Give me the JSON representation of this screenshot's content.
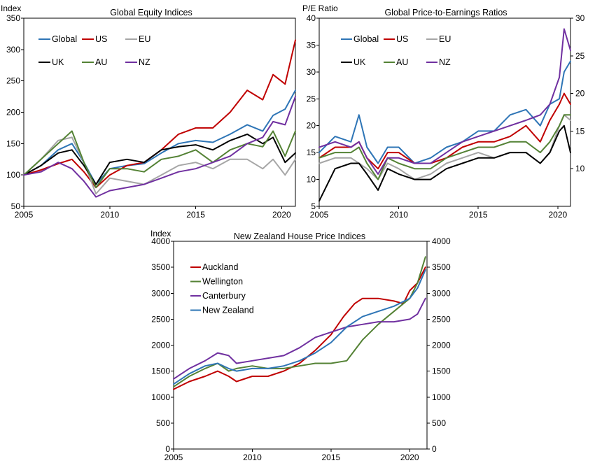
{
  "chart_data": [
    {
      "type": "line",
      "title": "Global Equity Indices",
      "ylabel": "Index",
      "x_ticks": [
        "2005",
        "2010",
        "2015",
        "2020"
      ],
      "y_ticks": [
        "50",
        "100",
        "150",
        "200",
        "250",
        "300",
        "350"
      ],
      "xlim": [
        2005,
        2020.8
      ],
      "ylim": [
        50,
        350
      ],
      "grid": false,
      "legend_position": "top-left",
      "series": [
        {
          "name": "Global",
          "color": "#2E75B6",
          "x": [
            2005,
            2006,
            2007,
            2007.8,
            2008.5,
            2009.2,
            2010,
            2011,
            2012,
            2013,
            2014,
            2015,
            2016,
            2017,
            2018,
            2018.9,
            2019.5,
            2020.2,
            2020.8
          ],
          "values": [
            100,
            115,
            140,
            150,
            120,
            85,
            110,
            115,
            118,
            135,
            150,
            155,
            152,
            165,
            180,
            170,
            195,
            205,
            235
          ]
        },
        {
          "name": "US",
          "color": "#C00000",
          "x": [
            2005,
            2006,
            2007,
            2007.8,
            2008.5,
            2009.2,
            2010,
            2011,
            2012,
            2013,
            2014,
            2015,
            2016,
            2017,
            2018,
            2018.9,
            2019.5,
            2020.2,
            2020.8
          ],
          "values": [
            100,
            108,
            118,
            125,
            105,
            80,
            100,
            115,
            120,
            140,
            165,
            175,
            175,
            200,
            235,
            220,
            260,
            245,
            315
          ]
        },
        {
          "name": "EU",
          "color": "#A6A6A6",
          "x": [
            2005,
            2006,
            2007,
            2007.8,
            2008.5,
            2009.2,
            2010,
            2011,
            2012,
            2013,
            2014,
            2015,
            2016,
            2017,
            2018,
            2018.9,
            2019.5,
            2020.2,
            2020.8
          ],
          "values": [
            100,
            125,
            155,
            160,
            120,
            70,
            95,
            90,
            85,
            100,
            115,
            120,
            110,
            125,
            125,
            110,
            125,
            100,
            125
          ]
        },
        {
          "name": "UK",
          "color": "#000000",
          "x": [
            2005,
            2006,
            2007,
            2007.8,
            2008.5,
            2009.2,
            2010,
            2011,
            2012,
            2013,
            2014,
            2015,
            2016,
            2017,
            2018,
            2018.9,
            2019.5,
            2020.2,
            2020.8
          ],
          "values": [
            100,
            115,
            135,
            140,
            115,
            85,
            120,
            125,
            120,
            140,
            145,
            148,
            140,
            155,
            165,
            150,
            160,
            120,
            135
          ]
        },
        {
          "name": "AU",
          "color": "#548235",
          "x": [
            2005,
            2006,
            2007,
            2007.8,
            2008.5,
            2009.2,
            2010,
            2011,
            2012,
            2013,
            2014,
            2015,
            2016,
            2017,
            2018,
            2018.9,
            2019.5,
            2020.2,
            2020.8
          ],
          "values": [
            100,
            125,
            150,
            170,
            120,
            80,
            110,
            110,
            105,
            125,
            130,
            140,
            120,
            140,
            150,
            145,
            170,
            130,
            170
          ]
        },
        {
          "name": "NZ",
          "color": "#7030A0",
          "x": [
            2005,
            2006,
            2007,
            2007.8,
            2008.5,
            2009.2,
            2010,
            2011,
            2012,
            2013,
            2014,
            2015,
            2016,
            2017,
            2018,
            2018.9,
            2019.5,
            2020.2,
            2020.8
          ],
          "values": [
            100,
            105,
            120,
            110,
            90,
            65,
            75,
            80,
            85,
            95,
            105,
            110,
            120,
            130,
            150,
            160,
            185,
            180,
            225
          ]
        }
      ]
    },
    {
      "type": "line",
      "title": "Global Price-to-Earnings Ratios",
      "ylabel": "P/E Ratio",
      "x_ticks": [
        "2005",
        "2010",
        "2015",
        "2020"
      ],
      "y_ticks": [
        "5",
        "10",
        "15",
        "20",
        "25",
        "30",
        "35",
        "40"
      ],
      "y2_ticks": [
        "10",
        "15",
        "20",
        "25",
        "30"
      ],
      "xlim": [
        2005,
        2020.8
      ],
      "ylim": [
        5,
        40
      ],
      "y2lim": [
        5,
        30
      ],
      "grid": false,
      "legend_position": "top-left",
      "series": [
        {
          "name": "Global",
          "color": "#2E75B6",
          "x": [
            2005,
            2006,
            2007,
            2007.5,
            2008,
            2008.7,
            2009.3,
            2010,
            2011,
            2012,
            2013,
            2014,
            2015,
            2016,
            2017,
            2018,
            2018.9,
            2019.5,
            2020.1,
            2020.4,
            2020.8
          ],
          "values": [
            15,
            18,
            17,
            22,
            16,
            13,
            16,
            16,
            13,
            14,
            16,
            17,
            19,
            19,
            22,
            23,
            20,
            24,
            25,
            30,
            32
          ]
        },
        {
          "name": "US",
          "color": "#C00000",
          "x": [
            2005,
            2006,
            2007,
            2007.5,
            2008,
            2008.7,
            2009.3,
            2010,
            2011,
            2012,
            2013,
            2014,
            2015,
            2016,
            2017,
            2018,
            2018.9,
            2019.5,
            2020.1,
            2020.4,
            2020.8
          ],
          "values": [
            14,
            16,
            16,
            17,
            14,
            12,
            15,
            15,
            13,
            13,
            14,
            16,
            17,
            17,
            18,
            20,
            17,
            21,
            24,
            26,
            24
          ]
        },
        {
          "name": "EU",
          "color": "#A6A6A6",
          "x": [
            2005,
            2006,
            2007,
            2007.5,
            2008,
            2008.7,
            2009.3,
            2010,
            2011,
            2012,
            2013,
            2014,
            2015,
            2016,
            2017,
            2018,
            2018.9,
            2019.5,
            2020.1,
            2020.4,
            2020.8
          ],
          "values": [
            13,
            14,
            14,
            13,
            12,
            10,
            13,
            12,
            10,
            11,
            13,
            14,
            15,
            14,
            15,
            15,
            13,
            15,
            20,
            22,
            21
          ]
        },
        {
          "name": "UK",
          "color": "#000000",
          "x": [
            2005,
            2006,
            2007,
            2007.5,
            2008,
            2008.7,
            2009.3,
            2010,
            2011,
            2012,
            2013,
            2014,
            2015,
            2016,
            2017,
            2018,
            2018.9,
            2019.5,
            2020.1,
            2020.4,
            2020.8
          ],
          "values": [
            6,
            12,
            13,
            13,
            11,
            8,
            12,
            11,
            10,
            10,
            12,
            13,
            14,
            14,
            15,
            15,
            13,
            15,
            19,
            20,
            15
          ]
        },
        {
          "name": "AU",
          "color": "#548235",
          "x": [
            2005,
            2006,
            2007,
            2007.5,
            2008,
            2008.7,
            2009.3,
            2010,
            2011,
            2012,
            2013,
            2014,
            2015,
            2016,
            2017,
            2018,
            2018.9,
            2019.5,
            2020.1,
            2020.4,
            2020.8
          ],
          "values": [
            14,
            15,
            15,
            16,
            13,
            10,
            14,
            13,
            12,
            12,
            14,
            15,
            16,
            16,
            17,
            17,
            15,
            17,
            20,
            22,
            22
          ]
        },
        {
          "name": "NZ",
          "color": "#7030A0",
          "x": [
            2005,
            2006,
            2007,
            2007.5,
            2008,
            2008.7,
            2009.3,
            2010,
            2011,
            2012,
            2013,
            2014,
            2015,
            2016,
            2017,
            2018,
            2018.9,
            2019.5,
            2020.1,
            2020.4,
            2020.8
          ],
          "values": [
            16,
            17,
            16,
            17,
            14,
            11,
            14,
            14,
            13,
            13,
            15,
            17,
            18,
            19,
            20,
            21,
            22,
            24,
            29,
            38,
            34
          ]
        }
      ]
    },
    {
      "type": "line",
      "title": "New Zealand House Price Indices",
      "ylabel": "Index",
      "x_ticks": [
        "2005",
        "2010",
        "2015",
        "2020"
      ],
      "y_ticks": [
        "0",
        "500",
        "1000",
        "1500",
        "2000",
        "2500",
        "3000",
        "3500",
        "4000"
      ],
      "y2_ticks": [
        "0",
        "500",
        "1000",
        "1500",
        "2000",
        "2500",
        "3000",
        "3500",
        "4000"
      ],
      "xlim": [
        2005,
        2021.1
      ],
      "ylim": [
        0,
        4000
      ],
      "y2lim": [
        0,
        4000
      ],
      "grid": false,
      "legend_position": "top-left",
      "series": [
        {
          "name": "Auckland",
          "color": "#C00000",
          "x": [
            2005,
            2006,
            2007,
            2007.8,
            2008.5,
            2009,
            2010,
            2011,
            2012,
            2013,
            2014,
            2015,
            2015.8,
            2016.5,
            2017,
            2018,
            2019,
            2019.6,
            2020,
            2020.5,
            2021
          ],
          "values": [
            1150,
            1300,
            1400,
            1500,
            1400,
            1300,
            1400,
            1400,
            1500,
            1650,
            1900,
            2200,
            2550,
            2800,
            2900,
            2900,
            2850,
            2800,
            3050,
            3200,
            3500
          ]
        },
        {
          "name": "Wellington",
          "color": "#548235",
          "x": [
            2005,
            2006,
            2007,
            2007.8,
            2008.5,
            2009,
            2010,
            2011,
            2012,
            2013,
            2014,
            2015,
            2016,
            2016.5,
            2017,
            2018,
            2019,
            2020,
            2020.5,
            2021
          ],
          "values": [
            1200,
            1400,
            1550,
            1650,
            1500,
            1550,
            1600,
            1550,
            1550,
            1600,
            1650,
            1650,
            1700,
            1900,
            2100,
            2400,
            2650,
            2900,
            3200,
            3700
          ]
        },
        {
          "name": "Canterbury",
          "color": "#7030A0",
          "x": [
            2005,
            2006,
            2007,
            2007.8,
            2008.5,
            2009,
            2010,
            2011,
            2012,
            2013,
            2014,
            2015,
            2016,
            2017,
            2018,
            2019,
            2020,
            2020.5,
            2021
          ],
          "values": [
            1350,
            1550,
            1700,
            1850,
            1800,
            1650,
            1700,
            1750,
            1800,
            1950,
            2150,
            2250,
            2350,
            2400,
            2450,
            2450,
            2500,
            2600,
            2900
          ]
        },
        {
          "name": "New Zealand",
          "color": "#2E75B6",
          "x": [
            2005,
            2006,
            2007,
            2007.8,
            2008.5,
            2009,
            2010,
            2011,
            2012,
            2013,
            2014,
            2015,
            2016,
            2017,
            2018,
            2019,
            2020,
            2020.5,
            2021
          ],
          "values": [
            1250,
            1450,
            1600,
            1650,
            1550,
            1500,
            1550,
            1550,
            1600,
            1700,
            1850,
            2050,
            2350,
            2550,
            2650,
            2750,
            2900,
            3100,
            3450
          ]
        }
      ]
    }
  ]
}
